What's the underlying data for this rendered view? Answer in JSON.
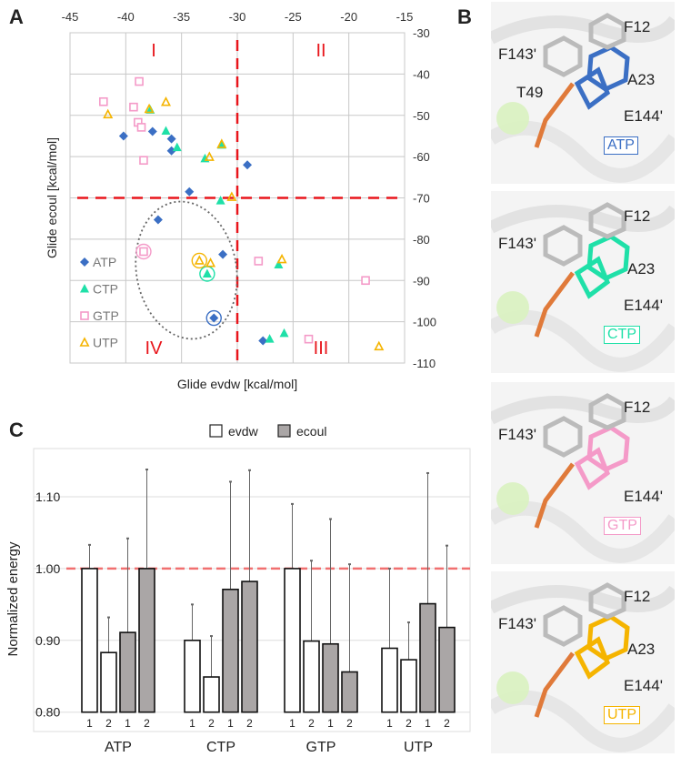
{
  "panels": {
    "a": "A",
    "b": "B",
    "c": "C"
  },
  "colors": {
    "ATP": "#3b6fc4",
    "CTP": "#1fe0a8",
    "GTP": "#f49ac8",
    "UTP": "#f5b400",
    "quadrant": "#e8151b"
  },
  "chart_data": [
    {
      "type": "scatter",
      "xlabel": "Glide evdw [kcal/mol]",
      "ylabel": "Glide ecoul [kcal/mol]",
      "xlim": [
        -45,
        -15
      ],
      "ylim": [
        -110,
        -30
      ],
      "xticks": [
        "-45",
        "-40",
        "-35",
        "-30",
        "-25",
        "-20",
        "-15"
      ],
      "yticks": [
        "-30",
        "-40",
        "-50",
        "-60",
        "-70",
        "-80",
        "-90",
        "-100",
        "-110"
      ],
      "grid": true,
      "legend_position": "left-inside",
      "thresholds": {
        "x": -30,
        "y": -70
      },
      "quadrants": [
        {
          "label": "I",
          "x": -37.5,
          "y": -34
        },
        {
          "label": "II",
          "x": -22.5,
          "y": -34
        },
        {
          "label": "III",
          "x": -22.5,
          "y": -106
        },
        {
          "label": "IV",
          "x": -37.5,
          "y": -106
        }
      ],
      "series": [
        {
          "name": "ATP",
          "marker": "diamond",
          "points": [
            [
              -40.2,
              -55.0
            ],
            [
              -37.6,
              -53.9
            ],
            [
              -35.9,
              -55.7
            ],
            [
              -35.9,
              -58.6
            ],
            [
              -29.1,
              -62.0
            ],
            [
              -34.3,
              -68.5
            ],
            [
              -37.1,
              -75.3
            ],
            [
              -31.3,
              -83.7
            ],
            [
              -32.1,
              -99.1
            ],
            [
              -27.7,
              -104.6
            ]
          ],
          "circled": [
            [
              -32.1,
              -99.1
            ]
          ]
        },
        {
          "name": "CTP",
          "marker": "triangle",
          "points": [
            [
              -37.8,
              -48.7
            ],
            [
              -36.4,
              -53.8
            ],
            [
              -35.4,
              -57.8
            ],
            [
              -32.9,
              -60.5
            ],
            [
              -31.4,
              -57.2
            ],
            [
              -31.5,
              -70.7
            ],
            [
              -32.7,
              -88.4
            ],
            [
              -26.3,
              -86.2
            ],
            [
              -27.1,
              -104.2
            ],
            [
              -25.8,
              -102.8
            ]
          ],
          "circled": [
            [
              -32.7,
              -88.4
            ]
          ]
        },
        {
          "name": "GTP",
          "marker": "square-open",
          "points": [
            [
              -38.8,
              -41.8
            ],
            [
              -42.0,
              -46.7
            ],
            [
              -39.3,
              -48.0
            ],
            [
              -38.9,
              -51.7
            ],
            [
              -38.6,
              -52.9
            ],
            [
              -38.4,
              -60.9
            ],
            [
              -38.4,
              -83.0
            ],
            [
              -28.1,
              -85.3
            ],
            [
              -18.5,
              -90.0
            ],
            [
              -23.6,
              -104.2
            ]
          ],
          "circled": [
            [
              -38.4,
              -83.0
            ]
          ]
        },
        {
          "name": "UTP",
          "marker": "triangle-open",
          "points": [
            [
              -41.6,
              -49.8
            ],
            [
              -37.9,
              -48.5
            ],
            [
              -36.4,
              -46.8
            ],
            [
              -31.4,
              -57.0
            ],
            [
              -32.5,
              -60.1
            ],
            [
              -30.5,
              -69.8
            ],
            [
              -33.4,
              -85.2
            ],
            [
              -32.4,
              -85.8
            ],
            [
              -26.0,
              -84.9
            ],
            [
              -17.3,
              -106.0
            ]
          ],
          "circled": [
            [
              -33.4,
              -85.2
            ]
          ]
        }
      ]
    },
    {
      "type": "bar",
      "ylabel": "Normalized energy",
      "ylim": [
        0.8,
        1.15
      ],
      "yticks": [
        "0.80",
        "0.90",
        "1.00",
        "1.10"
      ],
      "grid": true,
      "legend_position": "top",
      "reference_line": 1.0,
      "categories": [
        "ATP",
        "CTP",
        "GTP",
        "UTP"
      ],
      "sub_labels": [
        "1",
        "2",
        "1",
        "2"
      ],
      "series": [
        {
          "name": "evdw",
          "color": "#ffffff",
          "values": [
            [
              1.0,
              0.883
            ],
            [
              0.9,
              0.849
            ],
            [
              1.0,
              0.899
            ],
            [
              0.889,
              0.873
            ]
          ],
          "error_top": [
            [
              1.033,
              0.932
            ],
            [
              0.95,
              0.906
            ],
            [
              1.09,
              1.011
            ],
            [
              1.0,
              0.925
            ]
          ]
        },
        {
          "name": "ecoul",
          "color": "#aaa6a6",
          "values": [
            [
              0.911,
              1.0
            ],
            [
              0.971,
              0.982
            ],
            [
              0.895,
              0.856
            ],
            [
              0.951,
              0.918
            ]
          ],
          "error_top": [
            [
              1.042,
              1.138
            ],
            [
              1.121,
              1.137
            ],
            [
              1.069,
              1.006
            ],
            [
              1.133,
              1.032
            ]
          ]
        }
      ]
    }
  ],
  "structures": [
    {
      "ligand": "ATP",
      "residues": [
        "F12",
        "F143'",
        "A23",
        "T49",
        "E144'"
      ]
    },
    {
      "ligand": "CTP",
      "residues": [
        "F12",
        "F143'",
        "A23",
        "E144'"
      ]
    },
    {
      "ligand": "GTP",
      "residues": [
        "F12",
        "F143'",
        "E144'"
      ]
    },
    {
      "ligand": "UTP",
      "residues": [
        "F12",
        "F143'",
        "A23",
        "E144'"
      ]
    }
  ]
}
